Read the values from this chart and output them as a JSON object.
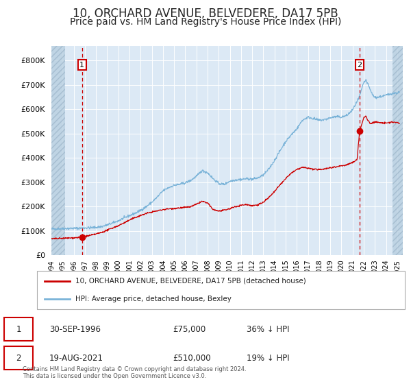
{
  "title": "10, ORCHARD AVENUE, BELVEDERE, DA17 5PB",
  "subtitle": "Price paid vs. HM Land Registry's House Price Index (HPI)",
  "title_fontsize": 12,
  "subtitle_fontsize": 10,
  "plot_bg_color": "#dce9f5",
  "hatch_color": "#b8cfe0",
  "grid_color": "#ffffff",
  "hpi_line_color": "#7ab3d8",
  "price_line_color": "#cc0000",
  "sale1_date": 1996.75,
  "sale1_price": 75000,
  "sale2_date": 2021.63,
  "sale2_price": 510000,
  "xmin": 1994.0,
  "xmax": 2025.5,
  "ymin": 0,
  "ymax": 860000,
  "ytick_step": 100000,
  "legend_label_red": "10, ORCHARD AVENUE, BELVEDERE, DA17 5PB (detached house)",
  "legend_label_blue": "HPI: Average price, detached house, Bexley",
  "footer_text": "Contains HM Land Registry data © Crown copyright and database right 2024.\nThis data is licensed under the Open Government Licence v3.0.",
  "table_entries": [
    {
      "num": "1",
      "date": "30-SEP-1996",
      "price": "£75,000",
      "change": "36% ↓ HPI"
    },
    {
      "num": "2",
      "date": "19-AUG-2021",
      "price": "£510,000",
      "change": "19% ↓ HPI"
    }
  ],
  "hpi_anchors": [
    [
      1994.0,
      108000
    ],
    [
      1994.5,
      109000
    ],
    [
      1995.0,
      110000
    ],
    [
      1995.5,
      110500
    ],
    [
      1996.0,
      111000
    ],
    [
      1996.75,
      112000
    ],
    [
      1997.0,
      113000
    ],
    [
      1997.5,
      113500
    ],
    [
      1998.0,
      115000
    ],
    [
      1998.5,
      118000
    ],
    [
      1999.0,
      125000
    ],
    [
      1999.5,
      133000
    ],
    [
      2000.0,
      142000
    ],
    [
      2000.5,
      153000
    ],
    [
      2001.0,
      163000
    ],
    [
      2001.5,
      173000
    ],
    [
      2002.0,
      185000
    ],
    [
      2002.5,
      200000
    ],
    [
      2003.0,
      218000
    ],
    [
      2003.5,
      240000
    ],
    [
      2004.0,
      265000
    ],
    [
      2004.5,
      278000
    ],
    [
      2005.0,
      288000
    ],
    [
      2005.5,
      292000
    ],
    [
      2006.0,
      298000
    ],
    [
      2006.5,
      308000
    ],
    [
      2007.0,
      325000
    ],
    [
      2007.5,
      348000
    ],
    [
      2008.0,
      340000
    ],
    [
      2008.5,
      315000
    ],
    [
      2009.0,
      295000
    ],
    [
      2009.5,
      292000
    ],
    [
      2010.0,
      305000
    ],
    [
      2010.5,
      310000
    ],
    [
      2011.0,
      312000
    ],
    [
      2011.5,
      315000
    ],
    [
      2012.0,
      313000
    ],
    [
      2012.5,
      318000
    ],
    [
      2013.0,
      330000
    ],
    [
      2013.5,
      355000
    ],
    [
      2014.0,
      390000
    ],
    [
      2014.5,
      430000
    ],
    [
      2015.0,
      468000
    ],
    [
      2015.5,
      495000
    ],
    [
      2016.0,
      520000
    ],
    [
      2016.5,
      555000
    ],
    [
      2017.0,
      568000
    ],
    [
      2017.5,
      562000
    ],
    [
      2018.0,
      555000
    ],
    [
      2018.5,
      558000
    ],
    [
      2019.0,
      565000
    ],
    [
      2019.5,
      570000
    ],
    [
      2020.0,
      568000
    ],
    [
      2020.5,
      575000
    ],
    [
      2021.0,
      598000
    ],
    [
      2021.5,
      640000
    ],
    [
      2021.63,
      655000
    ],
    [
      2022.0,
      710000
    ],
    [
      2022.2,
      720000
    ],
    [
      2022.4,
      700000
    ],
    [
      2022.6,
      678000
    ],
    [
      2022.8,
      660000
    ],
    [
      2023.0,
      648000
    ],
    [
      2023.5,
      652000
    ],
    [
      2024.0,
      658000
    ],
    [
      2024.5,
      665000
    ],
    [
      2025.0,
      668000
    ],
    [
      2025.2,
      670000
    ]
  ],
  "price_anchors": [
    [
      1994.0,
      68000
    ],
    [
      1994.5,
      69000
    ],
    [
      1995.0,
      70000
    ],
    [
      1995.5,
      71000
    ],
    [
      1996.0,
      72000
    ],
    [
      1996.75,
      75000
    ],
    [
      1997.0,
      78000
    ],
    [
      1997.5,
      82000
    ],
    [
      1998.0,
      88000
    ],
    [
      1998.5,
      94000
    ],
    [
      1999.0,
      103000
    ],
    [
      1999.5,
      113000
    ],
    [
      2000.0,
      122000
    ],
    [
      2000.5,
      133000
    ],
    [
      2001.0,
      145000
    ],
    [
      2001.5,
      155000
    ],
    [
      2002.0,
      164000
    ],
    [
      2002.5,
      172000
    ],
    [
      2003.0,
      178000
    ],
    [
      2003.5,
      183000
    ],
    [
      2004.0,
      188000
    ],
    [
      2004.5,
      191000
    ],
    [
      2005.0,
      193000
    ],
    [
      2005.5,
      195000
    ],
    [
      2006.0,
      197000
    ],
    [
      2006.5,
      200000
    ],
    [
      2007.0,
      210000
    ],
    [
      2007.5,
      222000
    ],
    [
      2008.0,
      215000
    ],
    [
      2008.5,
      188000
    ],
    [
      2009.0,
      182000
    ],
    [
      2009.5,
      185000
    ],
    [
      2010.0,
      192000
    ],
    [
      2010.5,
      200000
    ],
    [
      2011.0,
      206000
    ],
    [
      2011.5,
      209000
    ],
    [
      2012.0,
      204000
    ],
    [
      2012.5,
      208000
    ],
    [
      2013.0,
      218000
    ],
    [
      2013.5,
      238000
    ],
    [
      2014.0,
      262000
    ],
    [
      2014.5,
      290000
    ],
    [
      2015.0,
      315000
    ],
    [
      2015.5,
      338000
    ],
    [
      2016.0,
      352000
    ],
    [
      2016.5,
      362000
    ],
    [
      2017.0,
      358000
    ],
    [
      2017.5,
      354000
    ],
    [
      2018.0,
      352000
    ],
    [
      2018.5,
      356000
    ],
    [
      2019.0,
      360000
    ],
    [
      2019.5,
      364000
    ],
    [
      2020.0,
      368000
    ],
    [
      2020.5,
      372000
    ],
    [
      2021.0,
      382000
    ],
    [
      2021.4,
      393000
    ],
    [
      2021.63,
      510000
    ],
    [
      2022.0,
      565000
    ],
    [
      2022.2,
      572000
    ],
    [
      2022.4,
      552000
    ],
    [
      2022.6,
      542000
    ],
    [
      2022.8,
      545000
    ],
    [
      2023.0,
      548000
    ],
    [
      2023.5,
      545000
    ],
    [
      2024.0,
      543000
    ],
    [
      2024.5,
      548000
    ],
    [
      2025.0,
      545000
    ],
    [
      2025.2,
      543000
    ]
  ]
}
